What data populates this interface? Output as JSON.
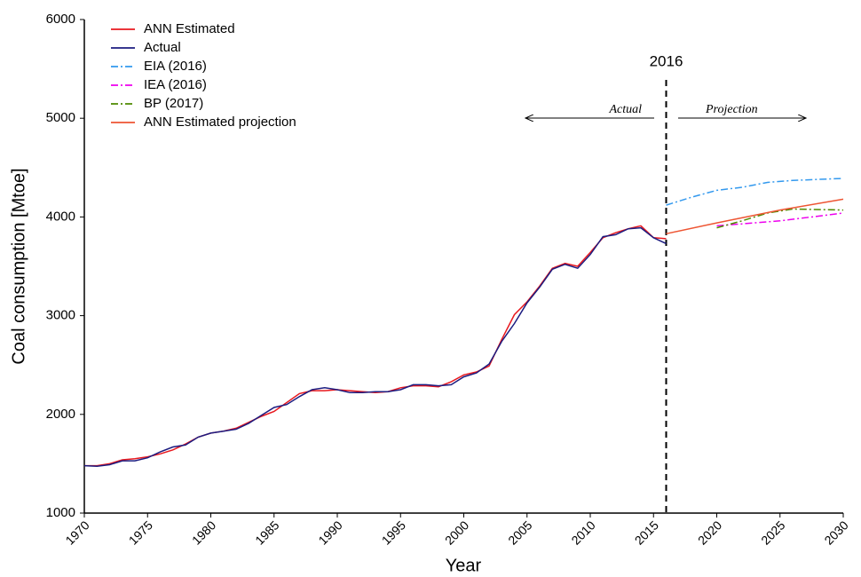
{
  "chart_data": {
    "type": "line",
    "xlabel": "Year",
    "ylabel": "Coal consumption [Mtoe]",
    "x": [
      1970,
      1971,
      1972,
      1973,
      1974,
      1975,
      1976,
      1977,
      1978,
      1979,
      1980,
      1981,
      1982,
      1983,
      1984,
      1985,
      1986,
      1987,
      1988,
      1989,
      1990,
      1991,
      1992,
      1993,
      1994,
      1995,
      1996,
      1997,
      1998,
      1999,
      2000,
      2001,
      2002,
      2003,
      2004,
      2005,
      2006,
      2007,
      2008,
      2009,
      2010,
      2011,
      2012,
      2013,
      2014,
      2015,
      2016
    ],
    "series": [
      {
        "name": "ANN Estimated",
        "color": "#e8191f",
        "dash": "solid",
        "values": [
          1480,
          1480,
          1500,
          1540,
          1550,
          1570,
          1600,
          1640,
          1700,
          1770,
          1810,
          1830,
          1860,
          1920,
          1980,
          2030,
          2120,
          2210,
          2240,
          2240,
          2250,
          2240,
          2230,
          2220,
          2230,
          2270,
          2290,
          2290,
          2280,
          2330,
          2400,
          2430,
          2490,
          2760,
          3010,
          3140,
          3300,
          3480,
          3530,
          3500,
          3640,
          3790,
          3840,
          3880,
          3910,
          3790,
          3780
        ]
      },
      {
        "name": "Actual",
        "color": "#1c1c80",
        "dash": "solid",
        "values": [
          1480,
          1475,
          1490,
          1530,
          1530,
          1560,
          1620,
          1670,
          1690,
          1770,
          1810,
          1830,
          1850,
          1910,
          1990,
          2070,
          2100,
          2180,
          2250,
          2270,
          2250,
          2220,
          2220,
          2230,
          2230,
          2250,
          2300,
          2300,
          2290,
          2300,
          2380,
          2420,
          2510,
          2740,
          2920,
          3130,
          3290,
          3470,
          3520,
          3480,
          3620,
          3800,
          3820,
          3880,
          3890,
          3790,
          3730
        ]
      },
      {
        "name": "EIA (2016)",
        "color": "#3399ee",
        "dash": "dashdot",
        "x": [
          2016,
          2018,
          2020,
          2022,
          2024,
          2026,
          2028,
          2030
        ],
        "values": [
          4120,
          4200,
          4270,
          4300,
          4350,
          4370,
          4380,
          4390
        ]
      },
      {
        "name": "IEA (2016)",
        "color": "#ee00ee",
        "dash": "dashdot",
        "x": [
          2020,
          2022,
          2025,
          2030
        ],
        "values": [
          3910,
          3930,
          3960,
          4040
        ]
      },
      {
        "name": "BP (2017)",
        "color": "#4e8a00",
        "dash": "dashdot",
        "x": [
          2020,
          2022,
          2024,
          2026,
          2030
        ],
        "values": [
          3890,
          3960,
          4040,
          4080,
          4070
        ]
      },
      {
        "name": "ANN Estimated projection",
        "color": "#ee5533",
        "dash": "solid",
        "x": [
          2016,
          2020,
          2025,
          2030
        ],
        "values": [
          3830,
          3940,
          4070,
          4180
        ]
      }
    ],
    "xlim": [
      1970,
      2030
    ],
    "xticks": [
      1970,
      1975,
      1980,
      1985,
      1990,
      1995,
      2000,
      2005,
      2010,
      2015,
      2020,
      2025,
      2030
    ],
    "ylim": [
      1000,
      6000
    ],
    "yticks": [
      1000,
      2000,
      3000,
      4000,
      5000,
      6000
    ],
    "grid": false,
    "legend": "upper left",
    "vline": {
      "x": 2016,
      "label": "2016"
    },
    "annotations": [
      "Actual",
      "Projection"
    ]
  }
}
